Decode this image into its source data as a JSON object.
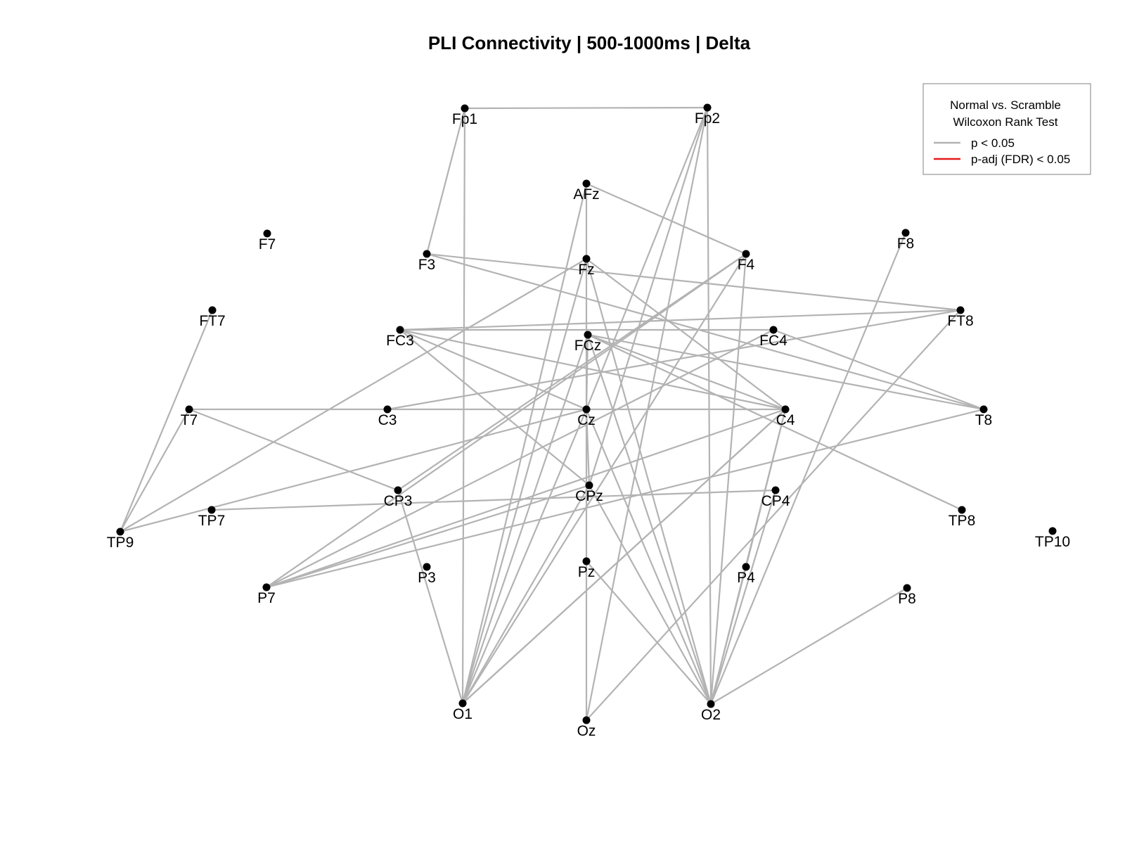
{
  "title": "PLI Connectivity | 500-1000ms |  Delta",
  "legend": {
    "title_line1": "Normal vs. Scramble",
    "title_line2": "Wilcoxon Rank Test",
    "items": [
      {
        "label": "p < 0.05",
        "color": "#b3b3b3"
      },
      {
        "label": "p-adj (FDR) < 0.05",
        "color": "#e41a1c"
      }
    ]
  },
  "nodes": [
    "Fp1",
    "Fp2",
    "AFz",
    "F7",
    "F3",
    "Fz",
    "F4",
    "F8",
    "FT7",
    "FC3",
    "FCz",
    "FC4",
    "FT8",
    "T7",
    "C3",
    "Cz",
    "C4",
    "T8",
    "TP9",
    "TP7",
    "CP3",
    "CPz",
    "CP4",
    "TP8",
    "TP10",
    "P7",
    "P3",
    "Pz",
    "P4",
    "P8",
    "O1",
    "Oz",
    "O2"
  ],
  "edges_p005": [
    [
      "Fp1",
      "Fp2"
    ],
    [
      "Fp1",
      "F3"
    ],
    [
      "Fp1",
      "O1"
    ],
    [
      "Fp2",
      "O2"
    ],
    [
      "Fp2",
      "CPz"
    ],
    [
      "Fp2",
      "Oz"
    ],
    [
      "Fp2",
      "Cz"
    ],
    [
      "AFz",
      "F4"
    ],
    [
      "AFz",
      "O1"
    ],
    [
      "AFz",
      "Cz"
    ],
    [
      "F3",
      "FT8"
    ],
    [
      "F3",
      "T8"
    ],
    [
      "Fz",
      "TP9"
    ],
    [
      "Fz",
      "O1"
    ],
    [
      "Fz",
      "O2"
    ],
    [
      "Fz",
      "C4"
    ],
    [
      "F4",
      "CP3"
    ],
    [
      "F4",
      "O1"
    ],
    [
      "F4",
      "P7"
    ],
    [
      "F4",
      "O2"
    ],
    [
      "F8",
      "O2"
    ],
    [
      "FT7",
      "TP9"
    ],
    [
      "FC3",
      "FC4"
    ],
    [
      "FC3",
      "FT8"
    ],
    [
      "FC3",
      "Cz"
    ],
    [
      "FC3",
      "C4"
    ],
    [
      "FC3",
      "CPz"
    ],
    [
      "FCz",
      "O2"
    ],
    [
      "FCz",
      "TP8"
    ],
    [
      "FCz",
      "T8"
    ],
    [
      "FCz",
      "C4"
    ],
    [
      "FCz",
      "O1"
    ],
    [
      "FCz",
      "Cz"
    ],
    [
      "FC4",
      "T8"
    ],
    [
      "FC4",
      "P7"
    ],
    [
      "FT8",
      "C3"
    ],
    [
      "FT8",
      "Oz"
    ],
    [
      "T7",
      "C4"
    ],
    [
      "T7",
      "CP3"
    ],
    [
      "T7",
      "TP9"
    ],
    [
      "Cz",
      "TP9"
    ],
    [
      "Cz",
      "O1"
    ],
    [
      "Cz",
      "Oz"
    ],
    [
      "Cz",
      "O2"
    ],
    [
      "Cz",
      "CPz"
    ],
    [
      "C4",
      "P7"
    ],
    [
      "C4",
      "O1"
    ],
    [
      "C4",
      "P4"
    ],
    [
      "C4",
      "O1"
    ],
    [
      "C4",
      "O2"
    ],
    [
      "T8",
      "P7"
    ],
    [
      "TP7",
      "CP4"
    ],
    [
      "CP3",
      "O1"
    ],
    [
      "CPz",
      "P7"
    ],
    [
      "CPz",
      "O2"
    ],
    [
      "CPz",
      "O1"
    ],
    [
      "Pz",
      "O2"
    ],
    [
      "P4",
      "O2"
    ],
    [
      "P8",
      "O2"
    ],
    [
      "CP4",
      "O2"
    ]
  ],
  "edges_fdr": []
}
